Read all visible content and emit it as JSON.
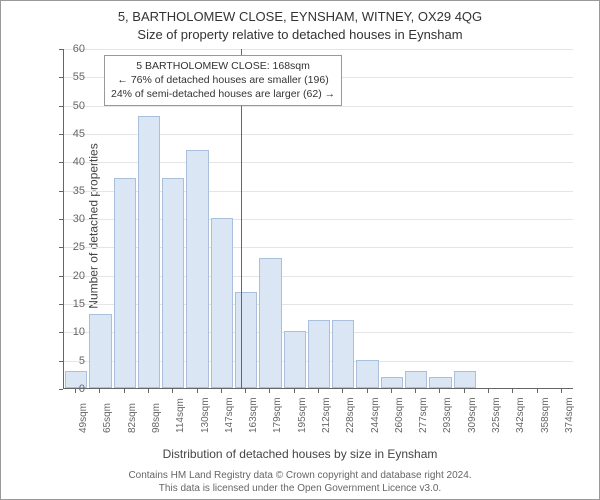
{
  "titles": {
    "main": "5, BARTHOLOMEW CLOSE, EYNSHAM, WITNEY, OX29 4QG",
    "sub": "Size of property relative to detached houses in Eynsham"
  },
  "axes": {
    "ylabel": "Number of detached properties",
    "xlabel": "Distribution of detached houses by size in Eynsham",
    "ymax": 60,
    "ytick_step": 5,
    "xticks": [
      "49sqm",
      "65sqm",
      "82sqm",
      "98sqm",
      "114sqm",
      "130sqm",
      "147sqm",
      "163sqm",
      "179sqm",
      "195sqm",
      "212sqm",
      "228sqm",
      "244sqm",
      "260sqm",
      "277sqm",
      "293sqm",
      "309sqm",
      "325sqm",
      "342sqm",
      "358sqm",
      "374sqm"
    ]
  },
  "bars": {
    "values": [
      3,
      13,
      37,
      48,
      37,
      42,
      30,
      17,
      23,
      10,
      12,
      12,
      5,
      2,
      3,
      2,
      3,
      0,
      0,
      0,
      0
    ],
    "fill": "#dbe6f5",
    "border": "#a9bfdc"
  },
  "marker": {
    "position_index": 7.3,
    "color": "#d33"
  },
  "annotation": {
    "line1": "5 BARTHOLOMEW CLOSE: 168sqm",
    "line2": "← 76% of detached houses are smaller (196)",
    "line3": "24% of semi-detached houses are larger (62) →"
  },
  "footer": {
    "line1": "Contains HM Land Registry data © Crown copyright and database right 2024.",
    "line2": "This data is licensed under the Open Government Licence v3.0."
  },
  "style": {
    "grid_color": "#e5e5e5",
    "axis_color": "#666666",
    "text_color": "#333333",
    "background": "#ffffff"
  }
}
